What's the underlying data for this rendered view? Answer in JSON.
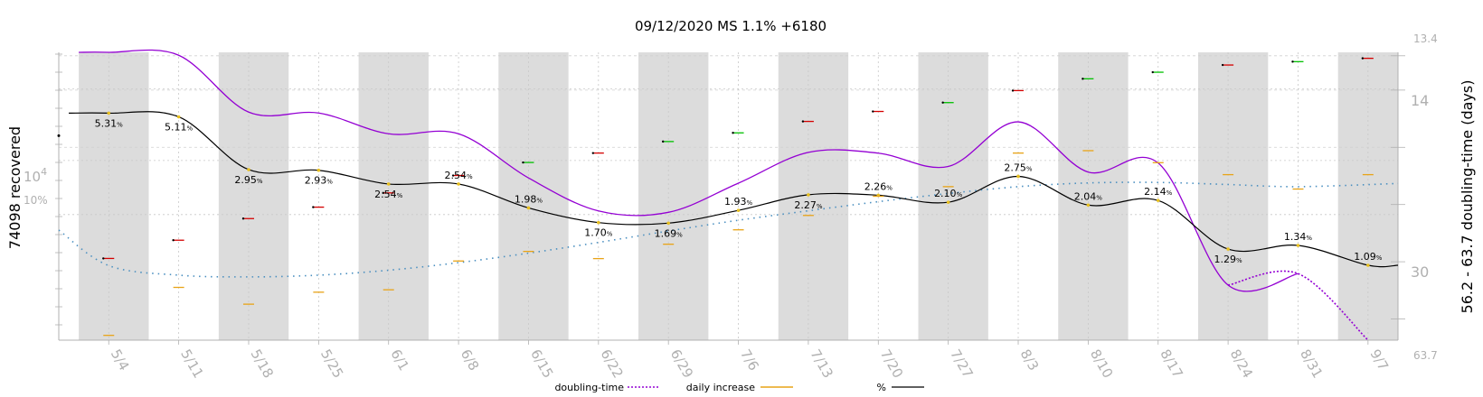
{
  "chart_data": {
    "type": "line",
    "title": "09/12/2020 MS 1.1% +6180",
    "ylabel_left": "74098 recovered",
    "ylabel_right": "56.2 - 63.7 doubling-time (days)",
    "left_axis_labels": {
      "tick": "10",
      "tick_exp": "4",
      "pct": "10%"
    },
    "right_axis": {
      "top": "13.4",
      "bottom": "63.7",
      "ticks": [
        "14",
        "30"
      ]
    },
    "x_tick_labels": [
      "5/4",
      "5/11",
      "5/18",
      "5/25",
      "6/1",
      "6/8",
      "6/15",
      "6/22",
      "6/29",
      "7/6",
      "7/13",
      "7/20",
      "7/27",
      "8/3",
      "8/10",
      "8/17",
      "8/24",
      "8/31",
      "9/7"
    ],
    "legend": [
      {
        "label": "doubling-time",
        "color": "#9400d3",
        "style": "dotted"
      },
      {
        "label": "daily increase",
        "color": "#e8a317",
        "style": "solid"
      },
      {
        "label": "%",
        "color": "#000000",
        "style": "solid"
      }
    ],
    "colors": {
      "pct_line": "#000000",
      "doubling": "#9400d3",
      "daily": "#e8a317",
      "cumulative": "#4a8fc0",
      "up": "#d40000",
      "down": "#00c000",
      "band": "#dcdcdc"
    },
    "pct_labels": [
      {
        "date": "5/4",
        "day": 3,
        "value": "5.31"
      },
      {
        "date": "5/11",
        "day": 10,
        "value": "5.11"
      },
      {
        "date": "5/18",
        "day": 17,
        "value": "2.95"
      },
      {
        "date": "5/25",
        "day": 24,
        "value": "2.93"
      },
      {
        "date": "6/1",
        "day": 31,
        "value": "2.54"
      },
      {
        "date": "6/8",
        "day": 38,
        "value": "2.54"
      },
      {
        "date": "6/15",
        "day": 45,
        "value": "1.98"
      },
      {
        "date": "6/22",
        "day": 52,
        "value": "1.70"
      },
      {
        "date": "6/29",
        "day": 59,
        "value": "1.69"
      },
      {
        "date": "7/6",
        "day": 66,
        "value": "1.93"
      },
      {
        "date": "7/13",
        "day": 73,
        "value": "2.27"
      },
      {
        "date": "7/20",
        "day": 80,
        "value": "2.26"
      },
      {
        "date": "7/27",
        "day": 87,
        "value": "2.10"
      },
      {
        "date": "8/3",
        "day": 94,
        "value": "2.75"
      },
      {
        "date": "8/10",
        "day": 101,
        "value": "2.04"
      },
      {
        "date": "8/17",
        "day": 108,
        "value": "2.14"
      },
      {
        "date": "8/24",
        "day": 115,
        "value": "1.29"
      },
      {
        "date": "8/31",
        "day": 122,
        "value": "1.34"
      },
      {
        "date": "9/7",
        "day": 129,
        "value": "1.09"
      }
    ],
    "pct_unit": "%",
    "weekly_recovered": [
      {
        "day": 3,
        "value": 5700,
        "trend": "up"
      },
      {
        "day": 10,
        "value": 7200,
        "trend": "up"
      },
      {
        "day": 17,
        "value": 9500,
        "trend": "up"
      },
      {
        "day": 24,
        "value": 11000,
        "trend": "up"
      },
      {
        "day": 31,
        "value": 13200,
        "trend": "up"
      },
      {
        "day": 38,
        "value": 16500,
        "trend": "up"
      },
      {
        "day": 45,
        "value": 19500,
        "trend": "down"
      },
      {
        "day": 52,
        "value": 22000,
        "trend": "up"
      },
      {
        "day": 59,
        "value": 25500,
        "trend": "down"
      },
      {
        "day": 66,
        "value": 28500,
        "trend": "down"
      },
      {
        "day": 73,
        "value": 33000,
        "trend": "up"
      },
      {
        "day": 80,
        "value": 37500,
        "trend": "up"
      },
      {
        "day": 87,
        "value": 42000,
        "trend": "down"
      },
      {
        "day": 94,
        "value": 49000,
        "trend": "up"
      },
      {
        "day": 101,
        "value": 57000,
        "trend": "down"
      },
      {
        "day": 108,
        "value": 62000,
        "trend": "down"
      },
      {
        "day": 115,
        "value": 68000,
        "trend": "up"
      },
      {
        "day": 122,
        "value": 71000,
        "trend": "down"
      },
      {
        "day": 129,
        "value": 74098,
        "trend": "up"
      }
    ],
    "daily_increase": [
      {
        "day": 3,
        "value": 120
      },
      {
        "day": 10,
        "value": 320
      },
      {
        "day": 17,
        "value": 250
      },
      {
        "day": 24,
        "value": 300
      },
      {
        "day": 31,
        "value": 310
      },
      {
        "day": 38,
        "value": 430
      },
      {
        "day": 45,
        "value": 470
      },
      {
        "day": 52,
        "value": 440
      },
      {
        "day": 59,
        "value": 500
      },
      {
        "day": 66,
        "value": 560
      },
      {
        "day": 73,
        "value": 620
      },
      {
        "day": 80,
        "value": 700
      },
      {
        "day": 87,
        "value": 740
      },
      {
        "day": 94,
        "value": 880
      },
      {
        "day": 101,
        "value": 890
      },
      {
        "day": 108,
        "value": 840
      },
      {
        "day": 115,
        "value": 790
      },
      {
        "day": 122,
        "value": 730
      },
      {
        "day": 129,
        "value": 790
      }
    ],
    "ranges": {
      "day_min": -2,
      "day_max": 132,
      "recovered_log": [
        2000,
        80000
      ],
      "pct_range": [
        0.5,
        10
      ],
      "doubling_range": [
        13.4,
        63.7
      ],
      "daily_range": [
        100,
        1300
      ]
    }
  }
}
